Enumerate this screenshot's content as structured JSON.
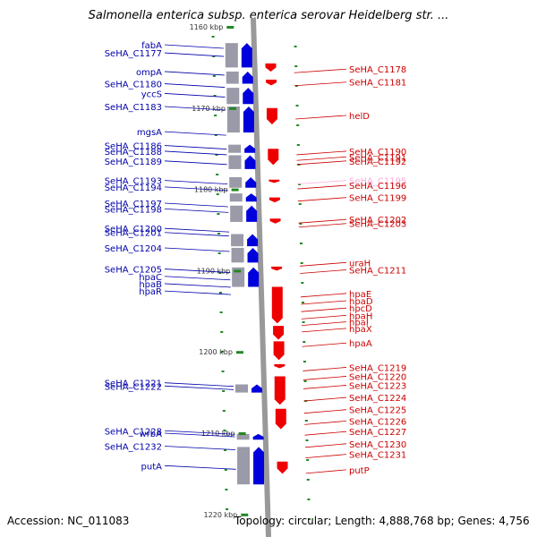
{
  "title": "Salmonella enterica subsp. enterica serovar Heidelberg str. ...",
  "footer": {
    "accession": "Accession: NC_011083",
    "summary": "Topology: circular; Length: 4,888,768 bp; Genes: 4,756"
  },
  "colors": {
    "left_label": "#0000aa",
    "right_label": "#cc0000",
    "highlight_label": "#ffaadd",
    "forward_arrow": "#0000dd",
    "reverse_arrow": "#ee0000",
    "axis": "#999999",
    "tick": "#228822"
  },
  "scale": {
    "ticks": [
      {
        "label": "1160 kbp",
        "kbp": 1160
      },
      {
        "label": "1170 kbp",
        "kbp": 1170
      },
      {
        "label": "1180 kbp",
        "kbp": 1180
      },
      {
        "label": "1190 kbp",
        "kbp": 1190
      },
      {
        "label": "1200 kbp",
        "kbp": 1200
      },
      {
        "label": "1210 kbp",
        "kbp": 1210
      },
      {
        "label": "1220 kbp",
        "kbp": 1220
      }
    ]
  },
  "left_genes": [
    {
      "name": "fabA",
      "kbp": 1162.2
    },
    {
      "name": "SeHA_C1177",
      "kbp": 1163.2
    },
    {
      "name": "ompA",
      "kbp": 1165.5
    },
    {
      "name": "SeHA_C1180",
      "kbp": 1167.0
    },
    {
      "name": "yccS",
      "kbp": 1168.2
    },
    {
      "name": "SeHA_C1183",
      "kbp": 1169.8
    },
    {
      "name": "mgsA",
      "kbp": 1172.9
    },
    {
      "name": "SeHA_C1186",
      "kbp": 1174.6
    },
    {
      "name": "SeHA_C1188",
      "kbp": 1175.3
    },
    {
      "name": "SeHA_C1189",
      "kbp": 1176.5
    },
    {
      "name": "SeHA_C1193",
      "kbp": 1178.9
    },
    {
      "name": "SeHA_C1194",
      "kbp": 1179.7
    },
    {
      "name": "SeHA_C1197",
      "kbp": 1181.7
    },
    {
      "name": "SeHA_C1198",
      "kbp": 1182.4
    },
    {
      "name": "SeHA_C1200",
      "kbp": 1184.8
    },
    {
      "name": "SeHA_C1201",
      "kbp": 1185.3
    },
    {
      "name": "SeHA_C1204",
      "kbp": 1187.2
    },
    {
      "name": "SeHA_C1205",
      "kbp": 1189.8
    },
    {
      "name": "hpaC",
      "kbp": 1190.7
    },
    {
      "name": "hpaB",
      "kbp": 1191.6
    },
    {
      "name": "hpaR",
      "kbp": 1192.5
    },
    {
      "name": "SeHA_C1221",
      "kbp": 1203.8
    },
    {
      "name": "SeHA_C1222",
      "kbp": 1204.2
    },
    {
      "name": "SeHA_C1228",
      "kbp": 1209.7
    },
    {
      "name": "wrbA",
      "kbp": 1210.0
    },
    {
      "name": "SeHA_C1232",
      "kbp": 1211.6
    },
    {
      "name": "putA",
      "kbp": 1214.0
    }
  ],
  "right_genes": [
    {
      "name": "SeHA_C1178",
      "kbp": 1165.2,
      "highlight": false
    },
    {
      "name": "SeHA_C1181",
      "kbp": 1166.8,
      "highlight": false
    },
    {
      "name": "helD",
      "kbp": 1170.9,
      "highlight": false
    },
    {
      "name": "SeHA_C1190",
      "kbp": 1175.3,
      "highlight": false
    },
    {
      "name": "SeHA_C1191",
      "kbp": 1176.0,
      "highlight": false
    },
    {
      "name": "SeHA_C1192",
      "kbp": 1176.5,
      "highlight": false
    },
    {
      "name": "SeHA_C1195",
      "kbp": 1178.9,
      "highlight": true
    },
    {
      "name": "SeHA_C1196",
      "kbp": 1179.5,
      "highlight": false
    },
    {
      "name": "SeHA_C1199",
      "kbp": 1181.0,
      "highlight": false
    },
    {
      "name": "SeHA_C1202",
      "kbp": 1183.7,
      "highlight": false
    },
    {
      "name": "SeHA_C1203",
      "kbp": 1184.2,
      "highlight": false
    },
    {
      "name": "uraH",
      "kbp": 1189.0,
      "highlight": false
    },
    {
      "name": "SeHA_C1211",
      "kbp": 1189.9,
      "highlight": false
    },
    {
      "name": "hpaE",
      "kbp": 1192.8,
      "highlight": false
    },
    {
      "name": "hpaD",
      "kbp": 1193.7,
      "highlight": false
    },
    {
      "name": "hpcD",
      "kbp": 1194.6,
      "highlight": false
    },
    {
      "name": "hpaH",
      "kbp": 1195.5,
      "highlight": false
    },
    {
      "name": "hpaI",
      "kbp": 1196.3,
      "highlight": false
    },
    {
      "name": "hpaX",
      "kbp": 1197.1,
      "highlight": false
    },
    {
      "name": "hpaA",
      "kbp": 1198.9,
      "highlight": false
    },
    {
      "name": "SeHA_C1219",
      "kbp": 1201.9,
      "highlight": false
    },
    {
      "name": "SeHA_C1220",
      "kbp": 1203.0,
      "highlight": false
    },
    {
      "name": "SeHA_C1223",
      "kbp": 1204.1,
      "highlight": false
    },
    {
      "name": "SeHA_C1224",
      "kbp": 1205.6,
      "highlight": false
    },
    {
      "name": "SeHA_C1225",
      "kbp": 1207.1,
      "highlight": false
    },
    {
      "name": "SeHA_C1226",
      "kbp": 1208.5,
      "highlight": false
    },
    {
      "name": "SeHA_C1227",
      "kbp": 1209.8,
      "highlight": false
    },
    {
      "name": "SeHA_C1230",
      "kbp": 1211.3,
      "highlight": false
    },
    {
      "name": "SeHA_C1231",
      "kbp": 1212.6,
      "highlight": false
    },
    {
      "name": "putP",
      "kbp": 1214.5,
      "highlight": false
    }
  ]
}
